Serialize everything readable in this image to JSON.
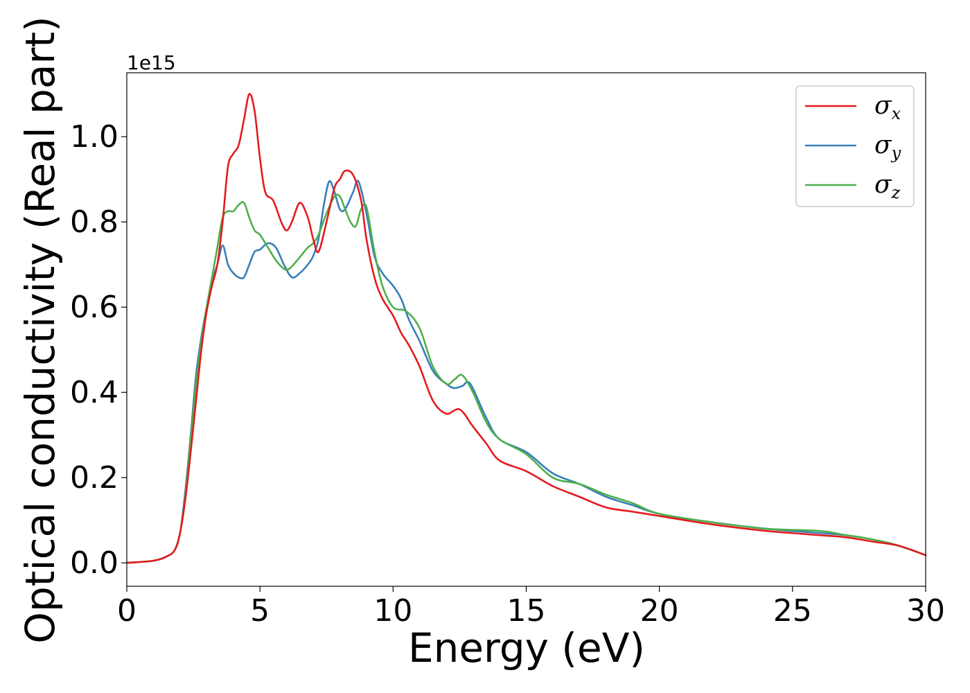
{
  "chart_data": {
    "type": "line",
    "xlabel": "Energy (eV)",
    "ylabel": "Optical conductivity (Real part)",
    "y_offset_label": "1e15",
    "xlim": [
      0,
      30
    ],
    "ylim": [
      -0.055,
      1.15
    ],
    "xticks": [
      0,
      5,
      10,
      15,
      20,
      25,
      30
    ],
    "xtick_labels": [
      "0",
      "5",
      "10",
      "15",
      "20",
      "25",
      "30"
    ],
    "yticks": [
      0.0,
      0.2,
      0.4,
      0.6,
      0.8,
      1.0
    ],
    "ytick_labels": [
      "0.0",
      "0.2",
      "0.4",
      "0.6",
      "0.8",
      "1.0"
    ],
    "grid": false,
    "legend_position": "top-right",
    "series": [
      {
        "name": "σx",
        "symbol": "σ",
        "subscript": "x",
        "color": "#e41a1c",
        "x": [
          0,
          1,
          1.5,
          1.8,
          2.0,
          2.2,
          2.4,
          2.6,
          2.8,
          3.0,
          3.2,
          3.4,
          3.6,
          3.8,
          4.0,
          4.2,
          4.4,
          4.6,
          4.8,
          5.0,
          5.2,
          5.5,
          5.8,
          6.0,
          6.2,
          6.5,
          6.8,
          7.0,
          7.2,
          7.5,
          7.8,
          8.0,
          8.2,
          8.5,
          8.8,
          9.0,
          9.3,
          9.6,
          10.0,
          10.3,
          10.6,
          11.0,
          11.5,
          12.0,
          12.5,
          13.0,
          13.5,
          14.0,
          15.0,
          16.0,
          17.0,
          18.0,
          19.0,
          20.0,
          22.0,
          24.0,
          26.0,
          27.0,
          28.0,
          29.0,
          30.0
        ],
        "y": [
          0,
          0.005,
          0.015,
          0.03,
          0.07,
          0.15,
          0.26,
          0.38,
          0.5,
          0.59,
          0.65,
          0.7,
          0.8,
          0.93,
          0.96,
          0.98,
          1.04,
          1.1,
          1.06,
          0.95,
          0.87,
          0.85,
          0.8,
          0.78,
          0.8,
          0.845,
          0.81,
          0.76,
          0.73,
          0.8,
          0.88,
          0.9,
          0.92,
          0.91,
          0.85,
          0.76,
          0.67,
          0.62,
          0.58,
          0.54,
          0.51,
          0.46,
          0.38,
          0.35,
          0.36,
          0.32,
          0.28,
          0.24,
          0.215,
          0.18,
          0.155,
          0.13,
          0.12,
          0.11,
          0.09,
          0.075,
          0.065,
          0.06,
          0.05,
          0.04,
          0.018
        ]
      },
      {
        "name": "σy",
        "symbol": "σ",
        "subscript": "y",
        "color": "#377eb8",
        "x": [
          0,
          1,
          1.5,
          1.8,
          2.0,
          2.2,
          2.4,
          2.6,
          2.8,
          3.0,
          3.2,
          3.4,
          3.6,
          3.8,
          4.0,
          4.2,
          4.4,
          4.6,
          4.8,
          5.0,
          5.3,
          5.6,
          5.9,
          6.2,
          6.5,
          6.8,
          7.0,
          7.2,
          7.4,
          7.6,
          7.8,
          8.0,
          8.2,
          8.5,
          8.7,
          9.0,
          9.3,
          9.6,
          10.0,
          10.3,
          10.6,
          11.0,
          11.5,
          12.0,
          12.3,
          12.6,
          12.9,
          13.5,
          14.0,
          15.0,
          16.0,
          17.0,
          18.0,
          19.0,
          20.0,
          22.0,
          24.0,
          26.0,
          27.0,
          28.0,
          29.0,
          30.0
        ],
        "y": [
          0,
          0.005,
          0.015,
          0.03,
          0.07,
          0.17,
          0.3,
          0.44,
          0.53,
          0.6,
          0.66,
          0.7,
          0.745,
          0.7,
          0.68,
          0.67,
          0.67,
          0.7,
          0.73,
          0.735,
          0.75,
          0.74,
          0.7,
          0.67,
          0.68,
          0.7,
          0.72,
          0.76,
          0.84,
          0.895,
          0.87,
          0.83,
          0.83,
          0.87,
          0.895,
          0.82,
          0.72,
          0.68,
          0.65,
          0.62,
          0.57,
          0.52,
          0.45,
          0.42,
          0.41,
          0.415,
          0.42,
          0.34,
          0.29,
          0.26,
          0.21,
          0.185,
          0.155,
          0.135,
          0.115,
          0.095,
          0.08,
          0.07,
          0.065,
          0.055,
          0.04,
          0.018
        ]
      },
      {
        "name": "σz",
        "symbol": "σ",
        "subscript": "z",
        "color": "#4daf4a",
        "x": [
          0,
          1,
          1.5,
          1.8,
          2.0,
          2.2,
          2.4,
          2.6,
          2.8,
          3.0,
          3.2,
          3.4,
          3.6,
          3.8,
          4.0,
          4.2,
          4.4,
          4.6,
          4.8,
          5.0,
          5.3,
          5.6,
          5.9,
          6.1,
          6.4,
          6.8,
          7.0,
          7.2,
          7.5,
          7.8,
          8.0,
          8.2,
          8.4,
          8.6,
          8.8,
          9.0,
          9.3,
          9.6,
          10.0,
          10.5,
          11.0,
          11.5,
          12.0,
          12.3,
          12.6,
          13.0,
          13.5,
          14.0,
          15.0,
          16.0,
          17.0,
          18.0,
          19.0,
          20.0,
          22.0,
          24.0,
          26.0,
          27.0,
          28.0,
          29.0,
          30.0
        ],
        "y": [
          0,
          0.005,
          0.015,
          0.03,
          0.07,
          0.16,
          0.29,
          0.42,
          0.52,
          0.6,
          0.67,
          0.74,
          0.81,
          0.825,
          0.825,
          0.84,
          0.845,
          0.81,
          0.78,
          0.77,
          0.74,
          0.71,
          0.69,
          0.69,
          0.71,
          0.74,
          0.75,
          0.77,
          0.82,
          0.86,
          0.86,
          0.83,
          0.8,
          0.79,
          0.83,
          0.835,
          0.73,
          0.65,
          0.6,
          0.59,
          0.55,
          0.46,
          0.42,
          0.43,
          0.44,
          0.4,
          0.33,
          0.29,
          0.255,
          0.2,
          0.185,
          0.16,
          0.14,
          0.115,
          0.095,
          0.08,
          0.075,
          0.065,
          0.055,
          0.04,
          0.018
        ]
      }
    ]
  }
}
